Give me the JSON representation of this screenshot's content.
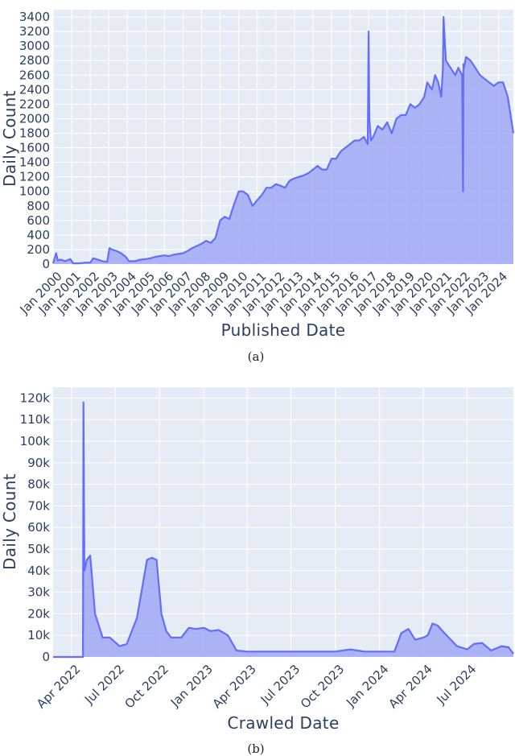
{
  "chart_data": [
    {
      "type": "area",
      "caption": "(a)",
      "xlabel": "Published Date",
      "ylabel": "Daily Count",
      "ylim": [
        0,
        3500
      ],
      "xlim": [
        "2000-01-01",
        "2024-10-20"
      ],
      "y_ticks": [
        0,
        200,
        400,
        600,
        800,
        1000,
        1200,
        1400,
        1600,
        1800,
        2000,
        2200,
        2400,
        2600,
        2800,
        3000,
        3200,
        3400
      ],
      "x_ticks": [
        "Jan 2000",
        "Jan 2001",
        "Jan 2002",
        "Jan 2003",
        "Jan 2004",
        "Jan 2005",
        "Jan 2006",
        "Jan 2007",
        "Jan 2008",
        "Jan 2009",
        "Jan 2010",
        "Jan 2011",
        "Jan 2012",
        "Jan 2013",
        "Jan 2014",
        "Jan 2015",
        "Jan 2016",
        "Jan 2017",
        "Jan 2018",
        "Jan 2019",
        "Jan 2020",
        "Jan 2021",
        "Jan 2022",
        "Jan 2023",
        "Jan 2024"
      ],
      "grid": true,
      "colors": {
        "line": "#636efa",
        "fill": "#a1a8f6",
        "plot_bg": "#e5ecf6",
        "grid": "#ffffff",
        "text": "#2a3f5f"
      },
      "series": [
        {
          "x": [
            "2000-01-01",
            "2000-03-01",
            "2000-04-01",
            "2000-06-01",
            "2000-09-01",
            "2000-12-01",
            "2001-02-01",
            "2001-06-01",
            "2001-10-01",
            "2002-01-01",
            "2002-03-01",
            "2002-06-01",
            "2002-09-01",
            "2002-12-01",
            "2003-01-15",
            "2003-03-01",
            "2003-06-01",
            "2003-09-01",
            "2003-12-01",
            "2004-02-01",
            "2004-06-01",
            "2004-09-01",
            "2005-01-01",
            "2005-04-01",
            "2005-07-01",
            "2006-01-01",
            "2006-04-01",
            "2006-07-01",
            "2007-01-01",
            "2007-04-01",
            "2007-07-01",
            "2008-01-01",
            "2008-04-01",
            "2008-07-01",
            "2008-10-01",
            "2009-01-01",
            "2009-04-01",
            "2009-07-01",
            "2009-10-01",
            "2010-01-01",
            "2010-04-01",
            "2010-07-01",
            "2010-10-01",
            "2011-01-01",
            "2011-04-01",
            "2011-07-01",
            "2011-10-01",
            "2012-01-01",
            "2012-04-01",
            "2012-07-01",
            "2012-10-01",
            "2013-01-01",
            "2013-04-01",
            "2013-07-01",
            "2013-10-01",
            "2014-01-01",
            "2014-04-01",
            "2014-07-01",
            "2014-10-01",
            "2015-01-01",
            "2015-04-01",
            "2015-07-01",
            "2015-10-01",
            "2016-01-01",
            "2016-04-01",
            "2016-07-01",
            "2016-10-01",
            "2016-12-15",
            "2017-01-01",
            "2017-01-15",
            "2017-02-15",
            "2017-04-01",
            "2017-07-01",
            "2017-10-01",
            "2018-01-01",
            "2018-04-01",
            "2018-07-01",
            "2018-10-01",
            "2019-01-01",
            "2019-04-01",
            "2019-07-01",
            "2019-10-01",
            "2020-01-01",
            "2020-03-01",
            "2020-06-01",
            "2020-08-01",
            "2020-10-01",
            "2020-12-01",
            "2021-01-01",
            "2021-01-15",
            "2021-03-01",
            "2021-06-01",
            "2021-09-01",
            "2021-11-01",
            "2022-01-15",
            "2022-02-01",
            "2022-02-10",
            "2022-02-20",
            "2022-04-01",
            "2022-07-01",
            "2022-10-01",
            "2023-01-01",
            "2023-04-01",
            "2023-07-01",
            "2023-10-01",
            "2024-01-01",
            "2024-04-01",
            "2024-07-01",
            "2024-10-20"
          ],
          "y": [
            10,
            150,
            50,
            60,
            40,
            70,
            10,
            10,
            20,
            20,
            80,
            60,
            40,
            30,
            220,
            200,
            180,
            150,
            100,
            40,
            40,
            60,
            70,
            80,
            100,
            120,
            110,
            130,
            150,
            180,
            220,
            280,
            320,
            290,
            360,
            600,
            650,
            620,
            820,
            1000,
            1000,
            950,
            800,
            880,
            950,
            1050,
            1050,
            1100,
            1080,
            1050,
            1150,
            1180,
            1200,
            1220,
            1250,
            1300,
            1350,
            1300,
            1300,
            1450,
            1450,
            1550,
            1600,
            1650,
            1700,
            1700,
            1750,
            1650,
            3200,
            2000,
            1700,
            1750,
            1900,
            1850,
            1950,
            1800,
            2000,
            2050,
            2050,
            2200,
            2150,
            2200,
            2300,
            2500,
            2400,
            2600,
            2500,
            2300,
            2700,
            3400,
            2800,
            2700,
            2600,
            2700,
            2600,
            1000,
            2750,
            2700,
            2850,
            2800,
            2700,
            2600,
            2550,
            2500,
            2450,
            2500,
            2500,
            2300,
            1800
          ]
        }
      ]
    },
    {
      "type": "area",
      "caption": "(b)",
      "xlabel": "Crawled Date",
      "ylabel": "Daily Count",
      "ylim": [
        0,
        125000
      ],
      "xlim": [
        "2022-02-22",
        "2024-10-05"
      ],
      "y_ticks": [
        0,
        10000,
        20000,
        30000,
        40000,
        50000,
        60000,
        70000,
        80000,
        90000,
        100000,
        110000,
        120000
      ],
      "y_tick_labels": [
        "0",
        "10k",
        "20k",
        "30k",
        "40k",
        "50k",
        "60k",
        "70k",
        "80k",
        "90k",
        "100k",
        "110k",
        "120k"
      ],
      "x_ticks": [
        "Apr 2022",
        "Jul 2022",
        "Oct 2022",
        "Jan 2023",
        "Apr 2023",
        "Jul 2023",
        "Oct 2023",
        "Jan 2024",
        "Apr 2024",
        "Jul 2024"
      ],
      "grid": true,
      "colors": {
        "line": "#636efa",
        "fill": "#a1a8f6",
        "plot_bg": "#e5ecf6",
        "grid": "#ffffff",
        "text": "#2a3f5f"
      },
      "series": [
        {
          "x": [
            "2022-02-22",
            "2022-04-25",
            "2022-04-26",
            "2022-04-28",
            "2022-05-03",
            "2022-05-10",
            "2022-05-20",
            "2022-06-05",
            "2022-06-20",
            "2022-07-10",
            "2022-07-25",
            "2022-08-15",
            "2022-09-05",
            "2022-09-15",
            "2022-09-25",
            "2022-10-05",
            "2022-10-15",
            "2022-10-25",
            "2022-11-15",
            "2022-12-01",
            "2022-12-15",
            "2023-01-01",
            "2023-01-15",
            "2023-02-01",
            "2023-02-20",
            "2023-03-10",
            "2023-04-01",
            "2023-07-01",
            "2023-10-01",
            "2023-11-01",
            "2023-12-01",
            "2024-01-01",
            "2024-02-01",
            "2024-02-15",
            "2024-03-01",
            "2024-03-15",
            "2024-04-01",
            "2024-04-10",
            "2024-04-20",
            "2024-05-01",
            "2024-05-15",
            "2024-06-10",
            "2024-07-01",
            "2024-07-15",
            "2024-08-01",
            "2024-08-20",
            "2024-09-10",
            "2024-09-25",
            "2024-10-05"
          ],
          "y": [
            0,
            0,
            118000,
            40000,
            45000,
            47000,
            20000,
            9000,
            9000,
            5000,
            6000,
            18000,
            45000,
            46000,
            45000,
            20000,
            12000,
            9000,
            9000,
            13500,
            13000,
            13500,
            12000,
            12500,
            10000,
            3000,
            2500,
            2500,
            2500,
            3500,
            2500,
            2500,
            2500,
            11000,
            13000,
            8000,
            9000,
            10000,
            15500,
            14500,
            11000,
            5000,
            3500,
            6000,
            6500,
            3000,
            5000,
            4500,
            1500
          ]
        }
      ]
    }
  ]
}
